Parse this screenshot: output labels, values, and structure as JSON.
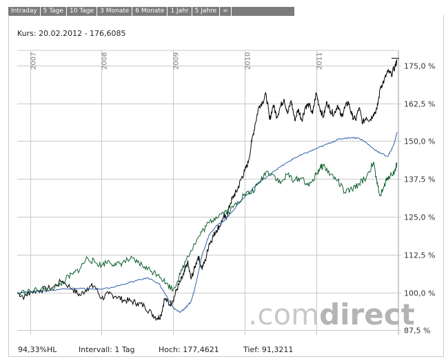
{
  "tabs": [
    "Intraday",
    "5 Tage",
    "10 Tage",
    "3 Monate",
    "6 Monate",
    "1 Jahr",
    "5 Jahre",
    "∞"
  ],
  "quote": "Kurs: 20.02.2012 - 176,6085",
  "footer": {
    "perf": "94,33%HL",
    "interval": "Intervall: 1 Tag",
    "high": "Hoch: 177,4621",
    "low": "Tief: 91,3211"
  },
  "watermark": {
    "part1": ".com",
    "part2": "direct"
  },
  "colors": {
    "main": "#000000",
    "blue": "#2f5ea8",
    "green": "#0f5f2f",
    "grid": "#c8c8c8"
  },
  "chart_data": {
    "type": "line",
    "x_tick_labels": [
      "2007",
      "2008",
      "2009",
      "2010",
      "2011"
    ],
    "y_tick_labels": [
      "175,0 %",
      "162,5 %",
      "150,0 %",
      "137,5 %",
      "125,0 %",
      "112,5 %",
      "100,0 %",
      "87,5 %"
    ],
    "y_ticks": [
      175,
      162.5,
      150,
      137.5,
      125,
      112.5,
      100,
      87.5
    ],
    "ylim": [
      86,
      180
    ],
    "xlim": [
      2006.82,
      2012.15
    ],
    "x_ticks": [
      2007,
      2008,
      2009,
      2010,
      2011
    ],
    "series": [
      {
        "color": "main",
        "x": [
          2006.82,
          2006.92,
          2007.0,
          2007.15,
          2007.3,
          2007.45,
          2007.6,
          2007.7,
          2007.8,
          2007.9,
          2008.0,
          2008.1,
          2008.2,
          2008.3,
          2008.4,
          2008.5,
          2008.6,
          2008.7,
          2008.78,
          2008.83,
          2008.88,
          2008.95,
          2009.0,
          2009.05,
          2009.1,
          2009.15,
          2009.2,
          2009.25,
          2009.3,
          2009.35,
          2009.4,
          2009.45,
          2009.5,
          2009.55,
          2009.6,
          2009.65,
          2009.7,
          2009.75,
          2009.8,
          2009.85,
          2009.9,
          2009.95,
          2010.0,
          2010.05,
          2010.1,
          2010.15,
          2010.2,
          2010.25,
          2010.3,
          2010.35,
          2010.4,
          2010.45,
          2010.5,
          2010.55,
          2010.6,
          2010.65,
          2010.7,
          2010.75,
          2010.8,
          2010.85,
          2010.9,
          2010.95,
          2011.0,
          2011.05,
          2011.1,
          2011.15,
          2011.2,
          2011.25,
          2011.3,
          2011.35,
          2011.4,
          2011.45,
          2011.5,
          2011.55,
          2011.6,
          2011.65,
          2011.7,
          2011.75,
          2011.8,
          2011.85,
          2011.9,
          2011.95,
          2012.0,
          2012.05,
          2012.1,
          2012.13
        ],
        "y": [
          100.0,
          98.5,
          100.2,
          100.8,
          101.5,
          103.8,
          101.0,
          99.0,
          101.5,
          102.2,
          98.0,
          99.5,
          98.8,
          97.5,
          97.2,
          96.5,
          95.5,
          93.0,
          91.5,
          92.5,
          98.0,
          96.0,
          97.5,
          101.0,
          103.5,
          106.0,
          110.0,
          104.5,
          108.0,
          112.0,
          108.0,
          110.5,
          116.0,
          118.0,
          120.5,
          122.0,
          124.5,
          125.0,
          129.5,
          132.0,
          134.0,
          137.5,
          140.0,
          143.0,
          150.0,
          156.0,
          161.5,
          163.0,
          165.5,
          157.0,
          162.0,
          158.0,
          161.5,
          164.0,
          159.0,
          163.5,
          157.0,
          160.5,
          157.0,
          161.5,
          162.0,
          159.0,
          166.0,
          161.0,
          158.0,
          163.0,
          160.0,
          159.0,
          162.0,
          158.0,
          161.0,
          163.0,
          158.5,
          157.0,
          161.0,
          156.0,
          158.0,
          157.0,
          159.0,
          160.5,
          168.0,
          170.0,
          173.0,
          172.0,
          174.5,
          176.6
        ]
      },
      {
        "color": "blue",
        "x": [
          2006.82,
          2007.0,
          2007.2,
          2007.4,
          2007.6,
          2007.8,
          2008.0,
          2008.2,
          2008.35,
          2008.5,
          2008.65,
          2008.8,
          2008.9,
          2008.95,
          2009.0,
          2009.05,
          2009.1,
          2009.15,
          2009.2,
          2009.25,
          2009.3,
          2009.4,
          2009.5,
          2009.6,
          2009.7,
          2009.8,
          2009.9,
          2010.0,
          2010.1,
          2010.2,
          2010.3,
          2010.4,
          2010.5,
          2010.6,
          2010.7,
          2010.8,
          2010.9,
          2011.0,
          2011.1,
          2011.2,
          2011.3,
          2011.4,
          2011.5,
          2011.6,
          2011.7,
          2011.8,
          2011.9,
          2012.0,
          2012.05,
          2012.1,
          2012.13
        ],
        "y": [
          100.0,
          100.2,
          100.5,
          101.0,
          101.5,
          101.2,
          101.0,
          102.0,
          103.0,
          104.0,
          104.8,
          103.0,
          99.0,
          97.0,
          95.0,
          94.0,
          93.5,
          94.5,
          95.5,
          97.0,
          101.0,
          112.0,
          119.0,
          122.0,
          123.5,
          126.0,
          129.0,
          131.5,
          134.0,
          136.5,
          138.0,
          140.0,
          141.5,
          143.0,
          144.5,
          145.5,
          146.5,
          147.5,
          148.5,
          149.5,
          150.5,
          151.0,
          151.2,
          151.0,
          149.5,
          147.5,
          146.0,
          145.0,
          147.0,
          150.0,
          153.0
        ]
      },
      {
        "color": "green",
        "x": [
          2006.82,
          2007.0,
          2007.2,
          2007.4,
          2007.5,
          2007.6,
          2007.7,
          2007.8,
          2007.9,
          2008.0,
          2008.1,
          2008.2,
          2008.3,
          2008.4,
          2008.5,
          2008.6,
          2008.7,
          2008.8,
          2008.9,
          2009.0,
          2009.1,
          2009.2,
          2009.3,
          2009.4,
          2009.5,
          2009.6,
          2009.7,
          2009.8,
          2009.9,
          2010.0,
          2010.1,
          2010.2,
          2010.3,
          2010.4,
          2010.5,
          2010.6,
          2010.7,
          2010.8,
          2010.9,
          2011.0,
          2011.05,
          2011.1,
          2011.2,
          2011.3,
          2011.4,
          2011.5,
          2011.6,
          2011.7,
          2011.8,
          2011.85,
          2011.9,
          2011.95,
          2012.0,
          2012.05,
          2012.1,
          2012.13
        ],
        "y": [
          99.5,
          100.5,
          101.0,
          102.0,
          104.5,
          106.0,
          108.0,
          111.5,
          110.0,
          109.0,
          110.5,
          109.0,
          110.0,
          111.0,
          110.0,
          108.5,
          107.0,
          106.0,
          103.0,
          101.0,
          106.0,
          112.0,
          116.0,
          120.0,
          123.0,
          125.0,
          126.5,
          127.0,
          130.0,
          132.5,
          133.0,
          136.0,
          140.0,
          139.0,
          136.0,
          139.0,
          137.0,
          138.0,
          135.0,
          139.0,
          141.0,
          142.0,
          139.0,
          137.0,
          133.0,
          134.0,
          136.0,
          138.0,
          143.0,
          136.0,
          132.0,
          135.0,
          138.0,
          139.0,
          140.0,
          143.0
        ]
      }
    ]
  }
}
